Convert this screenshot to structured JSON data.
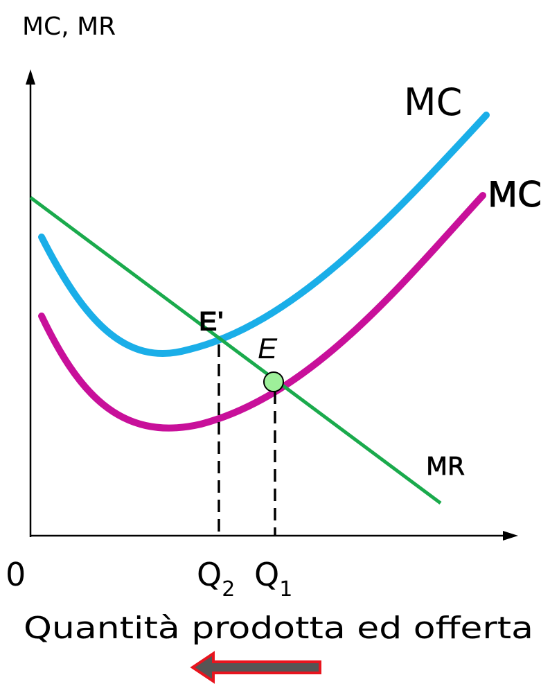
{
  "axes": {
    "y_label": "MC, MR",
    "x_label": "Quantità prodotta ed offerta",
    "origin_label": "0"
  },
  "curves": {
    "mc_upper": {
      "label": "MC",
      "color": "#1aaee8"
    },
    "mc_lower": {
      "label": "MC",
      "color": "#c8109a"
    },
    "mr": {
      "label": "MR",
      "color": "#1aaa4c"
    }
  },
  "points": {
    "e_prime": {
      "label": "E'"
    },
    "e": {
      "label": "E",
      "fill_color": "#9ef09a"
    }
  },
  "quantities": {
    "q2": {
      "letter": "Q",
      "subscript": "2"
    },
    "q1": {
      "letter": "Q",
      "subscript": "1"
    }
  },
  "arrow": {
    "direction": "left",
    "fill_color": "#555555",
    "outline_color": "#e8141e"
  }
}
